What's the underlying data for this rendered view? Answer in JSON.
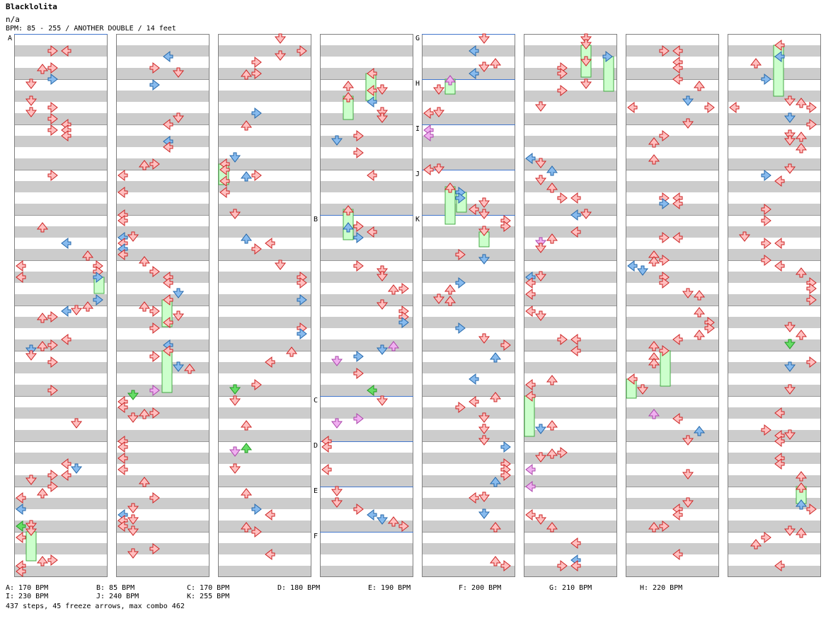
{
  "header": {
    "title": "Blacklolita",
    "artist": "n/a",
    "info": "BPM: 85 - 255 / ANOTHER DOUBLE / 14 feet"
  },
  "section_labels": [
    "A",
    "B",
    "C",
    "D",
    "E",
    "F",
    "G",
    "H",
    "I",
    "J",
    "K"
  ],
  "bpm_legend": [
    "A: 170 BPM",
    "B: 85 BPM",
    "C: 170 BPM",
    "D: 180 BPM",
    "E: 190 BPM",
    "F: 200 BPM",
    "G: 210 BPM",
    "H: 220 BPM",
    "I: 230 BPM",
    "J: 240 BPM",
    "K: 255 BPM"
  ],
  "summary": "437 steps, 45 freeze arrows, max combo 462",
  "colors": {
    "stripe": "#cccccc",
    "border": "#808080",
    "section_line": "#4477cc",
    "red_fill": "#ffc0c0",
    "red_stroke": "#cc2222",
    "blue_fill": "#88bbee",
    "blue_stroke": "#2266aa",
    "green_fill": "#66dd66",
    "green_stroke": "#229922",
    "pink_fill": "#f0b0f0",
    "pink_stroke": "#aa44aa",
    "freeze_fill": "#ccffcc",
    "freeze_stroke": "#44aa44"
  }
}
